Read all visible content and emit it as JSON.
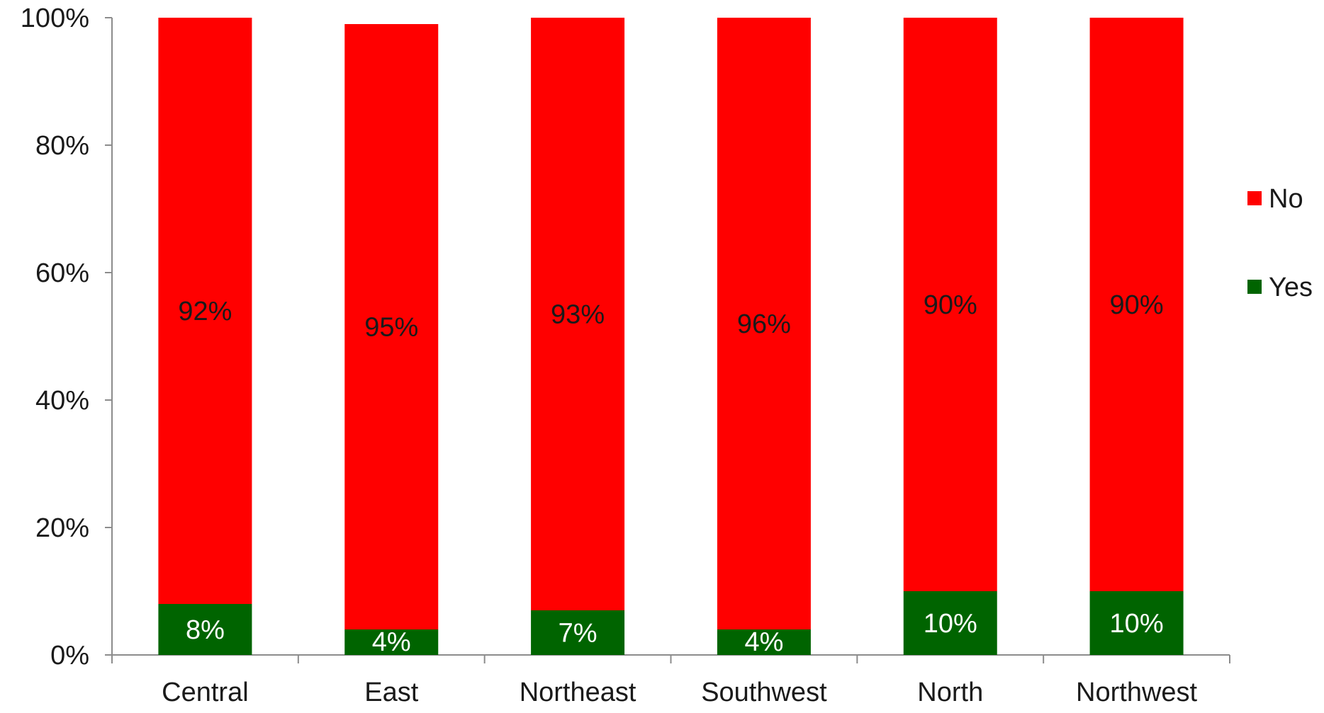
{
  "chart_data": {
    "type": "bar",
    "stacked": true,
    "percent_stacked": true,
    "categories": [
      "Central",
      "East",
      "Northeast",
      "Southwest",
      "North",
      "Northwest"
    ],
    "series": [
      {
        "name": "Yes",
        "color": "#006400",
        "values": [
          8,
          4,
          7,
          4,
          10,
          10
        ],
        "labels": [
          "8%",
          "4%",
          "7%",
          "4%",
          "10%",
          "10%"
        ],
        "label_color": "#ffffff"
      },
      {
        "name": "No",
        "color": "#ff0000",
        "values": [
          92,
          95,
          93,
          96,
          90,
          90
        ],
        "labels": [
          "92%",
          "95%",
          "93%",
          "96%",
          "90%",
          "90%"
        ],
        "label_color": "#1a1a1a"
      }
    ],
    "y_ticks": [
      {
        "value": 0,
        "label": "0%"
      },
      {
        "value": 20,
        "label": "20%"
      },
      {
        "value": 40,
        "label": "40%"
      },
      {
        "value": 60,
        "label": "60%"
      },
      {
        "value": 80,
        "label": "80%"
      },
      {
        "value": 100,
        "label": "100%"
      }
    ],
    "ylim": [
      0,
      100
    ],
    "grid": false,
    "legend": {
      "placement": "right",
      "order": [
        "No",
        "Yes"
      ]
    },
    "title": "",
    "xlabel": "",
    "ylabel": ""
  }
}
